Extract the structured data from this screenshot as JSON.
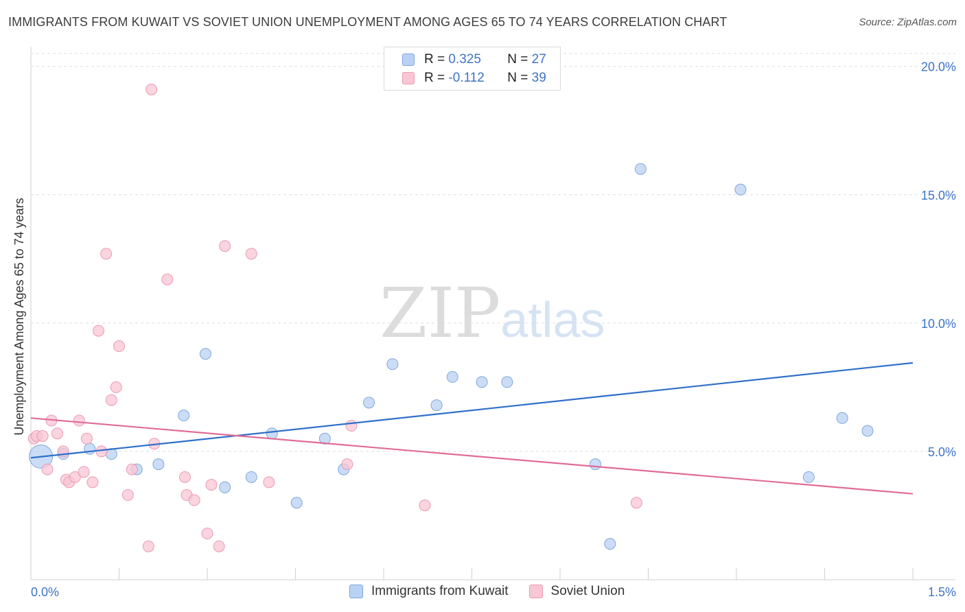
{
  "title": "IMMIGRANTS FROM KUWAIT VS SOVIET UNION UNEMPLOYMENT AMONG AGES 65 TO 74 YEARS CORRELATION CHART",
  "source": "Source: ZipAtlas.com",
  "watermark": {
    "zip": "ZIP",
    "atlas": "atlas"
  },
  "legend": {
    "kuwait": {
      "r_label": "R =",
      "r_value": "0.325",
      "n_label": "N =",
      "n_value": "27"
    },
    "soviet": {
      "r_label": "R =",
      "r_value": "-0.112",
      "n_label": "N =",
      "n_value": "39"
    }
  },
  "bottom_legend": {
    "kuwait": "Immigrants from Kuwait",
    "soviet": "Soviet Union"
  },
  "colors": {
    "kuwait_fill": "#b9d2f3",
    "kuwait_stroke": "#7ea6dc",
    "kuwait_line": "#2f6fca",
    "soviet_fill": "#f8c6d4",
    "soviet_stroke": "#eb9ab2",
    "soviet_line": "#e06b97",
    "axis_text": "#3d73c9",
    "grid": "#dedede"
  },
  "chart_data": {
    "type": "scatter",
    "title": "IMMIGRANTS FROM KUWAIT VS SOVIET UNION UNEMPLOYMENT AMONG AGES 65 TO 74 YEARS CORRELATION CHART",
    "xlabel": "",
    "ylabel": "Unemployment Among Ages 65 to 74 years",
    "xlim": [
      0.0,
      1.5
    ],
    "ylim": [
      0.0,
      20.5
    ],
    "x_tick_labels": [
      "0.0%",
      "1.5%"
    ],
    "y_ticks": [
      5,
      10,
      15,
      20
    ],
    "y_tick_labels": [
      "5.0%",
      "10.0%",
      "15.0%",
      "20.0%"
    ],
    "series": [
      {
        "name": "Immigrants from Kuwait",
        "points": [
          [
            0.017,
            4.8
          ],
          [
            0.055,
            4.9
          ],
          [
            0.1,
            5.1
          ],
          [
            0.137,
            4.9
          ],
          [
            0.18,
            4.3
          ],
          [
            0.217,
            4.5
          ],
          [
            0.26,
            6.4
          ],
          [
            0.297,
            8.8
          ],
          [
            0.33,
            3.6
          ],
          [
            0.375,
            4.0
          ],
          [
            0.41,
            5.7
          ],
          [
            0.452,
            3.0
          ],
          [
            0.5,
            5.5
          ],
          [
            0.532,
            4.3
          ],
          [
            0.575,
            6.9
          ],
          [
            0.615,
            8.4
          ],
          [
            0.69,
            6.8
          ],
          [
            0.717,
            7.9
          ],
          [
            0.767,
            7.7
          ],
          [
            0.81,
            7.7
          ],
          [
            0.96,
            4.5
          ],
          [
            0.985,
            1.4
          ],
          [
            1.037,
            16.0
          ],
          [
            1.207,
            15.2
          ],
          [
            1.323,
            4.0
          ],
          [
            1.38,
            6.3
          ],
          [
            1.423,
            5.8
          ]
        ],
        "trend": {
          "x": [
            0.0,
            1.5
          ],
          "y": [
            4.75,
            8.45
          ]
        }
      },
      {
        "name": "Soviet Union",
        "points": [
          [
            0.005,
            5.5
          ],
          [
            0.01,
            5.6
          ],
          [
            0.02,
            5.6
          ],
          [
            0.028,
            4.3
          ],
          [
            0.035,
            6.2
          ],
          [
            0.045,
            5.7
          ],
          [
            0.055,
            5.0
          ],
          [
            0.06,
            3.9
          ],
          [
            0.065,
            3.8
          ],
          [
            0.075,
            4.0
          ],
          [
            0.082,
            6.2
          ],
          [
            0.09,
            4.2
          ],
          [
            0.095,
            5.5
          ],
          [
            0.105,
            3.8
          ],
          [
            0.115,
            9.7
          ],
          [
            0.12,
            5.0
          ],
          [
            0.128,
            12.7
          ],
          [
            0.137,
            7.0
          ],
          [
            0.145,
            7.5
          ],
          [
            0.15,
            9.1
          ],
          [
            0.165,
            3.3
          ],
          [
            0.172,
            4.3
          ],
          [
            0.2,
            1.3
          ],
          [
            0.205,
            19.1
          ],
          [
            0.21,
            5.3
          ],
          [
            0.232,
            11.7
          ],
          [
            0.262,
            4.0
          ],
          [
            0.265,
            3.3
          ],
          [
            0.278,
            3.1
          ],
          [
            0.3,
            1.8
          ],
          [
            0.307,
            3.7
          ],
          [
            0.32,
            1.3
          ],
          [
            0.33,
            13.0
          ],
          [
            0.375,
            12.7
          ],
          [
            0.405,
            3.8
          ],
          [
            0.538,
            4.5
          ],
          [
            0.545,
            6.0
          ],
          [
            0.67,
            2.9
          ],
          [
            1.03,
            3.0
          ]
        ],
        "trend": {
          "x": [
            0.0,
            1.5
          ],
          "y": [
            6.3,
            3.35
          ]
        }
      }
    ]
  }
}
